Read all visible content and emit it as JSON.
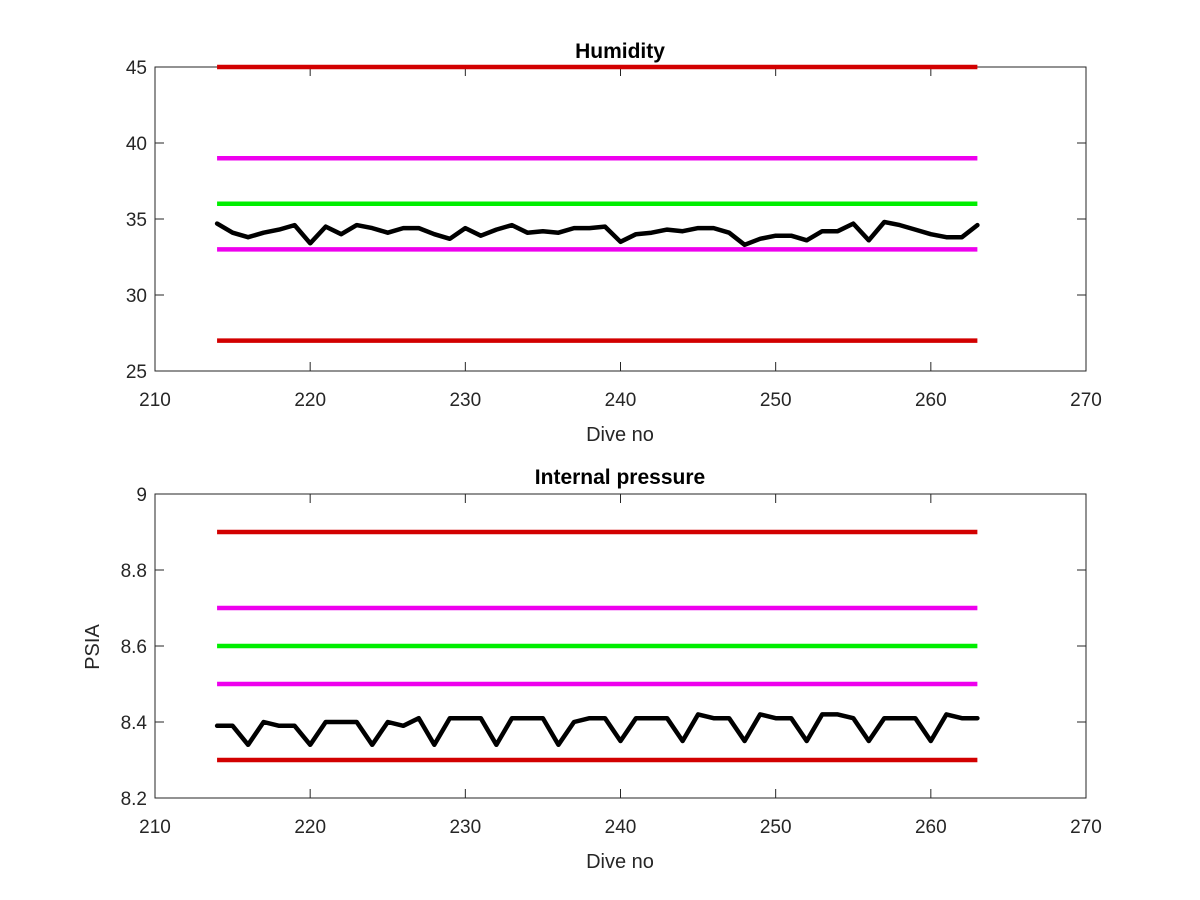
{
  "colors": {
    "red": "#d20000",
    "magenta": "#ee00ee",
    "green": "#00ee00",
    "data": "#000000",
    "axis": "#262626"
  },
  "chart_data": [
    {
      "type": "line",
      "title": "Humidity",
      "xlabel": "Dive no",
      "ylabel": "",
      "xlim": [
        210,
        270
      ],
      "ylim": [
        25,
        45
      ],
      "xticks": [
        "210",
        "220",
        "230",
        "240",
        "250",
        "260",
        "270"
      ],
      "yticks": [
        "25",
        "30",
        "35",
        "40",
        "45"
      ],
      "grid": false,
      "limit_lines": [
        {
          "y": 45,
          "x_range": [
            214,
            263
          ],
          "color": "red"
        },
        {
          "y": 39,
          "x_range": [
            214,
            263
          ],
          "color": "magenta"
        },
        {
          "y": 36,
          "x_range": [
            214,
            263
          ],
          "color": "green"
        },
        {
          "y": 33,
          "x_range": [
            214,
            263
          ],
          "color": "magenta"
        },
        {
          "y": 27,
          "x_range": [
            214,
            263
          ],
          "color": "red"
        }
      ],
      "series": [
        {
          "color": "data",
          "x": [
            214,
            215,
            216,
            217,
            218,
            219,
            220,
            221,
            222,
            223,
            224,
            225,
            226,
            227,
            228,
            229,
            230,
            231,
            232,
            233,
            234,
            235,
            236,
            237,
            238,
            239,
            240,
            241,
            242,
            243,
            244,
            245,
            246,
            247,
            248,
            249,
            250,
            251,
            252,
            253,
            254,
            255,
            256,
            257,
            258,
            259,
            260,
            261,
            262,
            263
          ],
          "y": [
            34.7,
            34.1,
            33.8,
            34.1,
            34.3,
            34.6,
            33.4,
            34.5,
            34.0,
            34.6,
            34.4,
            34.1,
            34.4,
            34.4,
            34.0,
            33.7,
            34.4,
            33.9,
            34.3,
            34.6,
            34.1,
            34.2,
            34.1,
            34.4,
            34.4,
            34.5,
            33.5,
            34.0,
            34.1,
            34.3,
            34.2,
            34.4,
            34.4,
            34.1,
            33.3,
            33.7,
            33.9,
            33.9,
            33.6,
            34.2,
            34.2,
            34.7,
            33.6,
            34.8,
            34.6,
            34.3,
            34.0,
            33.8,
            33.8,
            34.6
          ]
        }
      ]
    },
    {
      "type": "line",
      "title": "Internal pressure",
      "xlabel": "Dive no",
      "ylabel": "PSIA",
      "xlim": [
        210,
        270
      ],
      "ylim": [
        8.2,
        9
      ],
      "xticks": [
        "210",
        "220",
        "230",
        "240",
        "250",
        "260",
        "270"
      ],
      "yticks": [
        "8.2",
        "8.4",
        "8.6",
        "8.8",
        "9"
      ],
      "grid": false,
      "limit_lines": [
        {
          "y": 8.9,
          "x_range": [
            214,
            263
          ],
          "color": "red"
        },
        {
          "y": 8.7,
          "x_range": [
            214,
            263
          ],
          "color": "magenta"
        },
        {
          "y": 8.6,
          "x_range": [
            214,
            263
          ],
          "color": "green"
        },
        {
          "y": 8.5,
          "x_range": [
            214,
            263
          ],
          "color": "magenta"
        },
        {
          "y": 8.3,
          "x_range": [
            214,
            263
          ],
          "color": "red"
        }
      ],
      "series": [
        {
          "color": "data",
          "x": [
            214,
            215,
            216,
            217,
            218,
            219,
            220,
            221,
            222,
            223,
            224,
            225,
            226,
            227,
            228,
            229,
            230,
            231,
            232,
            233,
            234,
            235,
            236,
            237,
            238,
            239,
            240,
            241,
            242,
            243,
            244,
            245,
            246,
            247,
            248,
            249,
            250,
            251,
            252,
            253,
            254,
            255,
            256,
            257,
            258,
            259,
            260,
            261,
            262,
            263
          ],
          "y": [
            8.39,
            8.39,
            8.34,
            8.4,
            8.39,
            8.39,
            8.34,
            8.4,
            8.4,
            8.4,
            8.34,
            8.4,
            8.39,
            8.41,
            8.34,
            8.41,
            8.41,
            8.41,
            8.34,
            8.41,
            8.41,
            8.41,
            8.34,
            8.4,
            8.41,
            8.41,
            8.35,
            8.41,
            8.41,
            8.41,
            8.35,
            8.42,
            8.41,
            8.41,
            8.35,
            8.42,
            8.41,
            8.41,
            8.35,
            8.42,
            8.42,
            8.41,
            8.35,
            8.41,
            8.41,
            8.41,
            8.35,
            8.42,
            8.41,
            8.41
          ]
        }
      ]
    }
  ]
}
